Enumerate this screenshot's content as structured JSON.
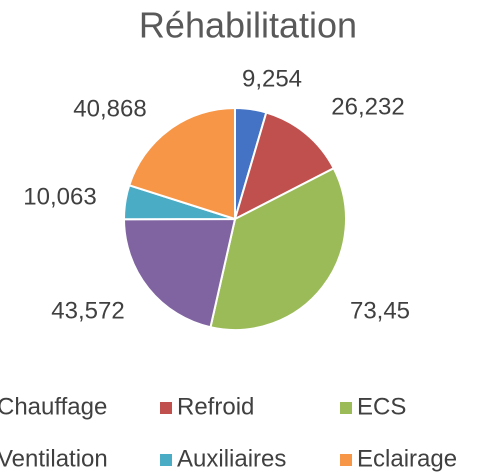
{
  "chart_data": {
    "type": "pie",
    "title": "Réhabilitation",
    "categories": [
      "Chauffage",
      "Refroid",
      "ECS",
      "Ventilation",
      "Auxiliaires",
      "Eclairage"
    ],
    "values": [
      9.254,
      26.232,
      73.45,
      43.572,
      10.063,
      40.868
    ],
    "value_labels": [
      "9,254",
      "26,232",
      "73,45",
      "43,572",
      "10,063",
      "40,868"
    ],
    "colors": [
      "#4472c4",
      "#c0504d",
      "#9bbb59",
      "#8064a2",
      "#4bacc6",
      "#f79646"
    ],
    "legend": "bottom"
  }
}
